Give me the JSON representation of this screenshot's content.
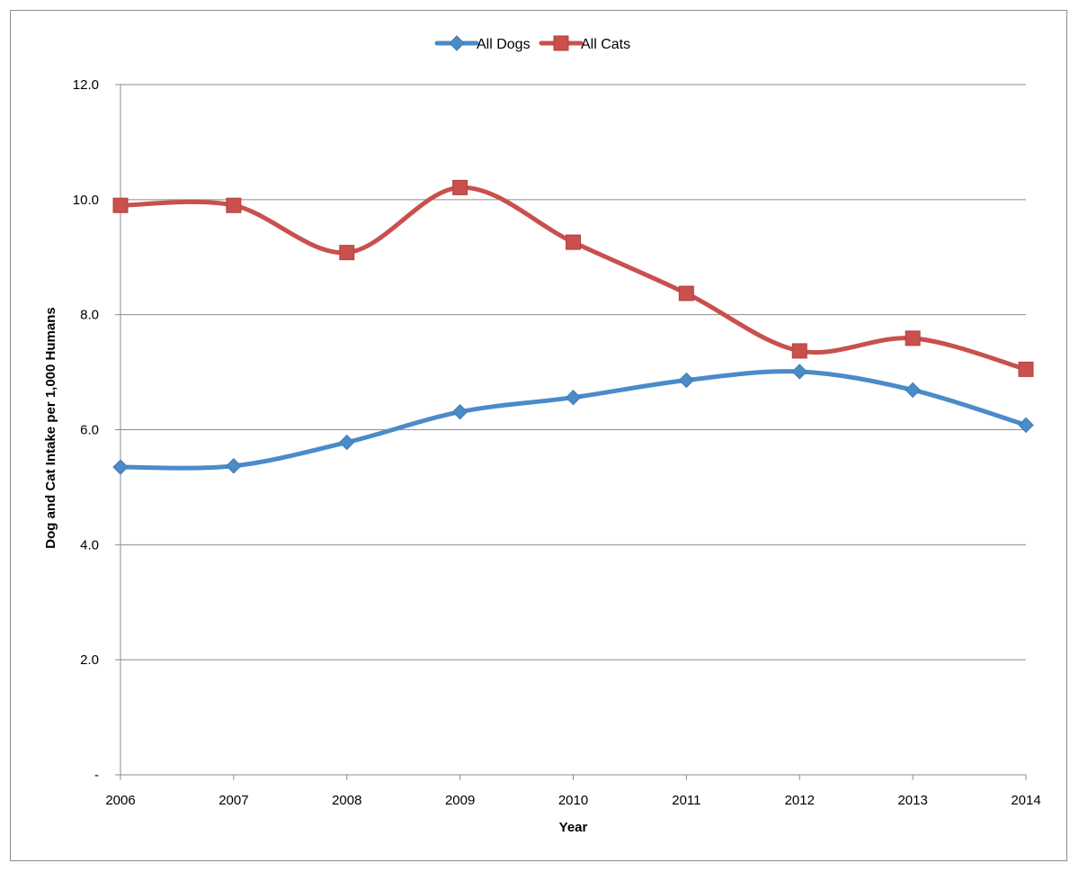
{
  "chart_data": {
    "type": "line",
    "smooth": true,
    "x": [
      2006,
      2007,
      2008,
      2009,
      2010,
      2011,
      2012,
      2013,
      2014
    ],
    "categories": [
      "2006",
      "2007",
      "2008",
      "2009",
      "2010",
      "2011",
      "2012",
      "2013",
      "2014"
    ],
    "series": [
      {
        "name": "All Dogs",
        "color": "#4a8bc8",
        "marker": "diamond",
        "values": [
          5.35,
          5.37,
          5.78,
          6.31,
          6.56,
          6.86,
          7.01,
          6.69,
          6.08
        ]
      },
      {
        "name": "All Cats",
        "color": "#c9504d",
        "marker": "square",
        "values": [
          9.9,
          9.9,
          9.08,
          10.21,
          9.26,
          8.37,
          7.37,
          7.59,
          7.05
        ]
      }
    ],
    "xlabel": "Year",
    "ylabel": "Dog and Cat Intake per 1,000 Humans",
    "ylim": [
      0,
      12
    ],
    "yticks": [
      0,
      2,
      4,
      6,
      8,
      10,
      12
    ],
    "ytick_labels": [
      "-",
      "2.0",
      "4.0",
      "6.0",
      "8.0",
      "10.0",
      "12.0"
    ],
    "grid": "horizontal",
    "legend_position": "top-center"
  }
}
